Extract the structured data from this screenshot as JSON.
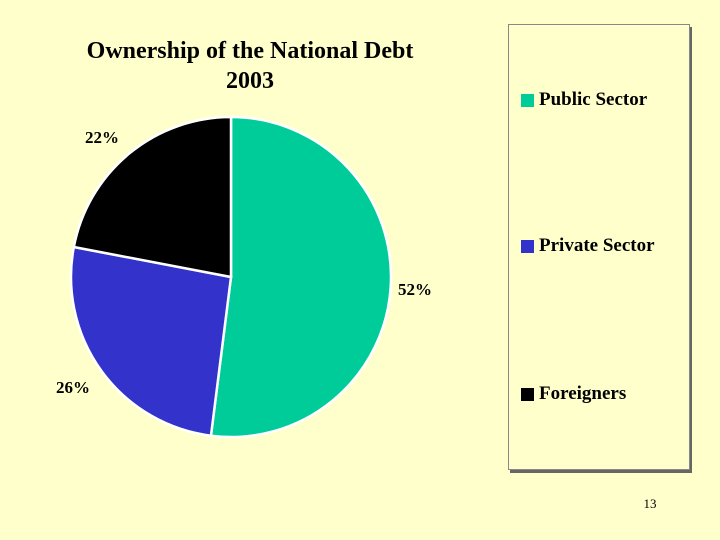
{
  "chart_data": {
    "type": "pie",
    "title": "Ownership of the National Debt",
    "subtitle": "2003",
    "slices": [
      {
        "name": "Public Sector",
        "value": 52,
        "label": "52%",
        "color": "#00CC99"
      },
      {
        "name": "Private Sector",
        "value": 26,
        "label": "26%",
        "color": "#3333CC"
      },
      {
        "name": "Foreigners",
        "value": 22,
        "label": "22%",
        "color": "#000000"
      }
    ],
    "legend": {
      "placement": "right"
    }
  },
  "page_number": "13"
}
